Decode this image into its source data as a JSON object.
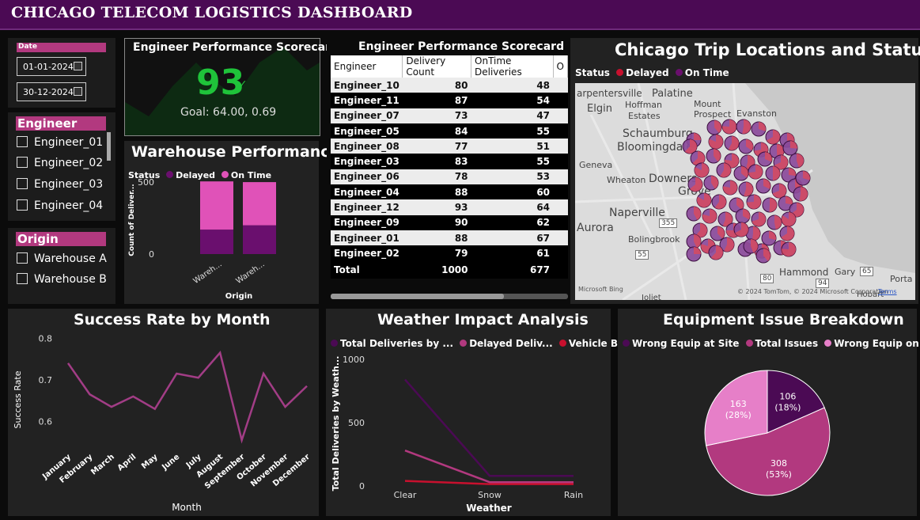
{
  "header": {
    "title": "CHICAGO TELECOM LOGISTICS DASHBOARD"
  },
  "date_slicer": {
    "label": "Date",
    "start": "01-01-2024",
    "end": "30-12-2024"
  },
  "engineer_slicer": {
    "label": "Engineer",
    "items": [
      "Engineer_01",
      "Engineer_02",
      "Engineer_03",
      "Engineer_04"
    ]
  },
  "origin_slicer": {
    "label": "Origin",
    "items": [
      "Warehouse A",
      "Warehouse B"
    ]
  },
  "kpi": {
    "title": "Engineer Performance Scorecard",
    "value": "93",
    "goal": "Goal: 64.00, 0.69"
  },
  "warehouse": {
    "title": "Warehouse Performance",
    "legend_title": "Status",
    "legend": [
      "Delayed",
      "On Time"
    ],
    "ylabel": "Count of Deliver...",
    "xlabel": "Origin",
    "yticks": [
      "500",
      "0"
    ],
    "categories": [
      "Wareh...",
      "Wareh..."
    ]
  },
  "scorecard_table": {
    "title": "Engineer Performance Scorecard",
    "columns": [
      "Engineer",
      "Delivery Count",
      "OnTime Deliveries",
      "O"
    ],
    "rows": [
      [
        "Engineer_10",
        "80",
        "48"
      ],
      [
        "Engineer_11",
        "87",
        "54"
      ],
      [
        "Engineer_07",
        "73",
        "47"
      ],
      [
        "Engineer_05",
        "84",
        "55"
      ],
      [
        "Engineer_08",
        "77",
        "51"
      ],
      [
        "Engineer_03",
        "83",
        "55"
      ],
      [
        "Engineer_06",
        "78",
        "53"
      ],
      [
        "Engineer_04",
        "88",
        "60"
      ],
      [
        "Engineer_12",
        "93",
        "64"
      ],
      [
        "Engineer_09",
        "90",
        "62"
      ],
      [
        "Engineer_01",
        "88",
        "67"
      ],
      [
        "Engineer_02",
        "79",
        "61"
      ]
    ],
    "total": [
      "Total",
      "1000",
      "677"
    ]
  },
  "map": {
    "title": "Chicago Trip Locations and Status",
    "legend_title": "Status",
    "legend": [
      "Delayed",
      "On Time"
    ],
    "places": [
      "arpentersville",
      "Palatine",
      "Elgin",
      "Hoffman",
      "Estates",
      "Mount",
      "Prospect",
      "Evanston",
      "Schaumburg",
      "Bloomingdale",
      "Geneva",
      "Wheaton",
      "Downers",
      "Grove",
      "Naperville",
      "Aurora",
      "Bolingbrook",
      "Hammond",
      "Gary",
      "Porta",
      "Hobart",
      "Joliet"
    ],
    "road_numbers": [
      "355",
      "55",
      "80",
      "65",
      "94"
    ],
    "provider": "Microsoft Bing",
    "copyright": "© 2024 TomTom, © 2024 Microsoft Corporation",
    "terms": "Terms"
  },
  "success_chart": {
    "title": "Success Rate by Month",
    "xlabel": "Month",
    "ylabel": "Success Rate",
    "yticks": [
      "0.8",
      "0.7",
      "0.6"
    ]
  },
  "weather_chart": {
    "title": "Weather Impact Analysis",
    "legend": [
      "Total Deliveries by ...",
      "Delayed Deliv...",
      "Vehicle Brea..."
    ],
    "xlabel": "Weather",
    "ylabel": "Total Deliveries by Weath...",
    "yticks": [
      "1000",
      "500",
      "0"
    ]
  },
  "equipment_chart": {
    "title": "Equipment Issue Breakdown",
    "legend": [
      "Wrong Equip at Site",
      "Total Issues",
      "Wrong Equip on Truck"
    ],
    "labels": [
      [
        "106",
        "(18%)"
      ],
      [
        "308",
        "(53%)"
      ],
      [
        "163",
        "(28%)"
      ]
    ]
  },
  "colors": {
    "header": "#4b0a54",
    "delayed": "#6a0f6e",
    "ontime": "#e052b8",
    "kpi_green": "#1fc33a",
    "pink": "#b2397f",
    "red": "#c8102e"
  },
  "chart_data": [
    {
      "type": "bar",
      "title": "Warehouse Performance",
      "categories": [
        "Warehouse A",
        "Warehouse B"
      ],
      "series": [
        {
          "name": "Delayed",
          "values": [
            170,
            200
          ]
        },
        {
          "name": "On Time",
          "values": [
            335,
            300
          ]
        }
      ],
      "stacked": true,
      "xlabel": "Origin",
      "ylabel": "Count of Deliver...",
      "ylim": [
        0,
        550
      ]
    },
    {
      "type": "line",
      "title": "Success Rate by Month",
      "x": [
        "January",
        "February",
        "March",
        "April",
        "May",
        "June",
        "July",
        "August",
        "September",
        "October",
        "November",
        "December"
      ],
      "values": [
        0.74,
        0.665,
        0.635,
        0.66,
        0.63,
        0.715,
        0.705,
        0.765,
        0.555,
        0.715,
        0.635,
        0.685
      ],
      "xlabel": "Month",
      "ylabel": "Success Rate",
      "ylim": [
        0.54,
        0.81
      ]
    },
    {
      "type": "line",
      "title": "Weather Impact Analysis",
      "x": [
        "Clear",
        "Snow",
        "Rain"
      ],
      "series": [
        {
          "name": "Total Deliveries by ...",
          "values": [
            840,
            80,
            80
          ]
        },
        {
          "name": "Delayed Deliv...",
          "values": [
            280,
            30,
            30
          ]
        },
        {
          "name": "Vehicle Brea...",
          "values": [
            40,
            15,
            15
          ]
        }
      ],
      "xlabel": "Weather",
      "ylabel": "Total Deliveries by Weath...",
      "ylim": [
        0,
        1000
      ]
    },
    {
      "type": "pie",
      "title": "Equipment Issue Breakdown",
      "categories": [
        "Wrong Equip at Site",
        "Total Issues",
        "Wrong Equip on Truck"
      ],
      "values": [
        106,
        308,
        163
      ]
    }
  ]
}
